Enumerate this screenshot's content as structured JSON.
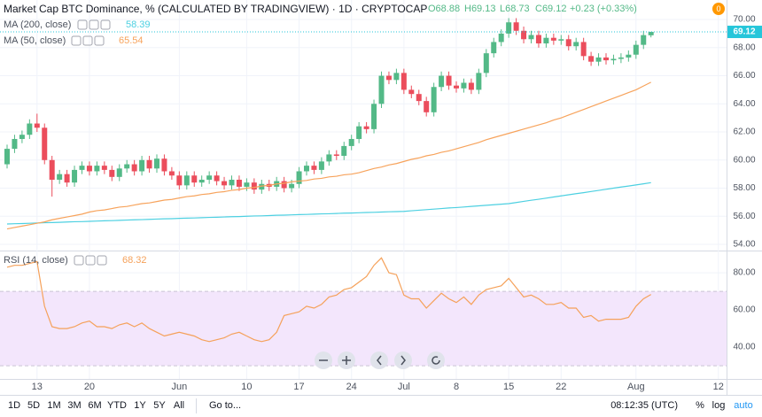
{
  "chart_data": [
    {
      "type": "candlestick",
      "title": "Market Cap BTC Dominance, % (CALCULATED BY TRADINGVIEW) · 1D · CRYPTOCAP",
      "ohlc_legend": [
        "O68.88",
        "H69.13",
        "L68.73",
        "C69.12"
      ],
      "change": "+0.23 (+0.33%)",
      "up_color": "#53b987",
      "down_color": "#eb4d5c",
      "categories": [
        null,
        null,
        null,
        null,
        "13",
        null,
        null,
        null,
        null,
        null,
        null,
        "20",
        null,
        null,
        null,
        null,
        null,
        null,
        null,
        null,
        null,
        null,
        null,
        "Jun",
        null,
        null,
        null,
        null,
        null,
        null,
        null,
        null,
        "10",
        null,
        null,
        null,
        null,
        null,
        null,
        "17",
        null,
        null,
        null,
        null,
        null,
        null,
        "24",
        null,
        null,
        null,
        null,
        null,
        null,
        "Jul",
        null,
        null,
        null,
        null,
        null,
        null,
        "8",
        null,
        null,
        null,
        null,
        null,
        null,
        "15",
        null,
        null,
        null,
        null,
        null,
        null,
        "22",
        null,
        null,
        null,
        null,
        null,
        null,
        null,
        null,
        null,
        "Aug",
        null,
        null,
        null,
        null,
        null,
        null,
        null,
        null,
        null,
        null,
        "12"
      ],
      "ohlc": [
        [
          59.7,
          61.1,
          59.4,
          60.8
        ],
        [
          60.8,
          61.8,
          60.5,
          61.5
        ],
        [
          61.5,
          62.1,
          61.2,
          61.8
        ],
        [
          61.8,
          62.9,
          61.5,
          62.6
        ],
        [
          62.6,
          63.3,
          62.0,
          62.3
        ],
        [
          62.3,
          62.6,
          59.7,
          60.0
        ],
        [
          60.0,
          60.3,
          57.4,
          58.6
        ],
        [
          58.6,
          59.3,
          58.3,
          59.0
        ],
        [
          59.0,
          59.3,
          58.1,
          58.4
        ],
        [
          58.4,
          59.6,
          58.1,
          59.3
        ],
        [
          59.3,
          59.9,
          59.0,
          59.6
        ],
        [
          59.6,
          59.9,
          58.9,
          59.2
        ],
        [
          59.2,
          59.9,
          58.9,
          59.6
        ],
        [
          59.6,
          59.9,
          59.0,
          59.3
        ],
        [
          59.3,
          59.6,
          58.5,
          58.8
        ],
        [
          58.8,
          59.7,
          58.5,
          59.4
        ],
        [
          59.4,
          60.0,
          59.1,
          59.7
        ],
        [
          59.7,
          60.0,
          58.9,
          59.2
        ],
        [
          59.2,
          60.3,
          58.9,
          60.0
        ],
        [
          60.0,
          60.3,
          59.1,
          59.4
        ],
        [
          59.4,
          60.4,
          59.1,
          60.1
        ],
        [
          60.1,
          60.4,
          58.9,
          59.2
        ],
        [
          59.2,
          59.5,
          58.6,
          58.9
        ],
        [
          58.9,
          59.2,
          57.9,
          58.2
        ],
        [
          58.2,
          59.2,
          57.9,
          58.9
        ],
        [
          58.9,
          59.2,
          58.1,
          58.4
        ],
        [
          58.4,
          58.9,
          58.1,
          58.6
        ],
        [
          58.6,
          59.2,
          58.3,
          58.9
        ],
        [
          58.9,
          59.2,
          58.2,
          58.5
        ],
        [
          58.5,
          58.8,
          57.9,
          58.2
        ],
        [
          58.2,
          58.9,
          57.9,
          58.6
        ],
        [
          58.6,
          58.9,
          57.8,
          58.1
        ],
        [
          58.1,
          58.7,
          57.8,
          58.4
        ],
        [
          58.4,
          58.7,
          57.6,
          57.9
        ],
        [
          57.9,
          58.6,
          57.6,
          58.3
        ],
        [
          58.3,
          58.6,
          57.8,
          58.1
        ],
        [
          58.1,
          58.8,
          57.8,
          58.5
        ],
        [
          58.5,
          58.8,
          57.7,
          58.0
        ],
        [
          58.0,
          58.6,
          57.7,
          58.3
        ],
        [
          58.3,
          59.5,
          58.0,
          59.2
        ],
        [
          59.2,
          59.9,
          58.9,
          59.6
        ],
        [
          59.6,
          59.9,
          59.0,
          59.3
        ],
        [
          59.3,
          60.2,
          59.0,
          59.9
        ],
        [
          59.9,
          60.7,
          59.6,
          60.4
        ],
        [
          60.4,
          60.7,
          60.0,
          60.3
        ],
        [
          60.3,
          61.3,
          60.0,
          61.0
        ],
        [
          61.0,
          61.8,
          60.7,
          61.5
        ],
        [
          61.5,
          62.7,
          61.2,
          62.4
        ],
        [
          62.4,
          62.7,
          61.9,
          62.2
        ],
        [
          62.2,
          64.3,
          61.9,
          64.0
        ],
        [
          64.0,
          66.3,
          63.7,
          66.0
        ],
        [
          66.0,
          66.3,
          65.4,
          65.7
        ],
        [
          65.7,
          66.5,
          65.4,
          66.2
        ],
        [
          66.2,
          66.5,
          64.7,
          65.0
        ],
        [
          65.0,
          65.3,
          64.4,
          64.7
        ],
        [
          64.7,
          65.0,
          63.9,
          64.2
        ],
        [
          64.2,
          64.5,
          63.1,
          63.4
        ],
        [
          63.4,
          65.5,
          63.1,
          65.2
        ],
        [
          65.2,
          66.3,
          64.9,
          66.0
        ],
        [
          66.0,
          66.3,
          65.0,
          65.3
        ],
        [
          65.3,
          65.6,
          64.8,
          65.1
        ],
        [
          65.1,
          65.8,
          64.8,
          65.5
        ],
        [
          65.5,
          65.8,
          64.7,
          65.0
        ],
        [
          65.0,
          66.5,
          64.7,
          66.2
        ],
        [
          66.2,
          67.9,
          65.9,
          67.6
        ],
        [
          67.6,
          68.7,
          67.3,
          68.4
        ],
        [
          68.4,
          69.3,
          68.1,
          69.0
        ],
        [
          69.0,
          70.1,
          68.7,
          69.8
        ],
        [
          69.8,
          70.1,
          68.9,
          69.2
        ],
        [
          69.2,
          69.5,
          68.3,
          68.6
        ],
        [
          68.6,
          69.2,
          68.3,
          68.9
        ],
        [
          68.9,
          69.2,
          68.0,
          68.3
        ],
        [
          68.3,
          69.0,
          68.0,
          68.7
        ],
        [
          68.7,
          69.0,
          68.2,
          68.5
        ],
        [
          68.5,
          68.9,
          68.2,
          68.6
        ],
        [
          68.6,
          68.9,
          67.8,
          68.1
        ],
        [
          68.1,
          68.7,
          67.8,
          68.4
        ],
        [
          68.4,
          68.7,
          67.1,
          67.4
        ],
        [
          67.4,
          67.7,
          66.7,
          67.0
        ],
        [
          67.0,
          67.6,
          66.7,
          67.3
        ],
        [
          67.3,
          67.6,
          66.8,
          67.1
        ],
        [
          67.1,
          67.5,
          66.8,
          67.2
        ],
        [
          67.2,
          67.6,
          66.9,
          67.3
        ],
        [
          67.3,
          67.8,
          67.0,
          67.5
        ],
        [
          67.5,
          68.5,
          67.2,
          68.2
        ],
        [
          68.2,
          69.2,
          67.9,
          68.89
        ],
        [
          68.88,
          69.13,
          68.73,
          69.12
        ],
        null,
        null,
        null,
        null,
        null,
        null,
        null,
        null,
        null
      ],
      "series": [
        {
          "name": "MA (200, close)",
          "color": "#4dd0e1",
          "values": [
            55.45,
            55.47,
            55.48,
            55.5,
            55.52,
            55.54,
            55.55,
            55.57,
            55.59,
            55.61,
            55.62,
            55.64,
            55.66,
            55.68,
            55.69,
            55.71,
            55.73,
            55.75,
            55.76,
            55.78,
            55.8,
            55.82,
            55.83,
            55.85,
            55.87,
            55.88,
            55.9,
            55.92,
            55.93,
            55.95,
            55.97,
            55.98,
            56.0,
            56.02,
            56.03,
            56.05,
            56.07,
            56.08,
            56.1,
            56.12,
            56.13,
            56.15,
            56.17,
            56.18,
            56.2,
            56.22,
            56.23,
            56.25,
            56.27,
            56.28,
            56.3,
            56.32,
            56.33,
            56.35,
            56.39,
            56.43,
            56.47,
            56.51,
            56.55,
            56.59,
            56.62,
            56.66,
            56.7,
            56.74,
            56.78,
            56.82,
            56.86,
            56.9,
            56.98,
            57.06,
            57.14,
            57.21,
            57.29,
            57.37,
            57.45,
            57.53,
            57.61,
            57.68,
            57.76,
            57.84,
            57.92,
            58.0,
            58.08,
            58.15,
            58.23,
            58.31,
            58.39,
            null,
            null,
            null,
            null,
            null,
            null,
            null,
            null,
            null
          ]
        },
        {
          "name": "MA (50, close)",
          "color": "#f7a35c",
          "values": [
            55.1,
            55.2,
            55.3,
            55.4,
            55.5,
            55.6,
            55.75,
            55.85,
            55.95,
            56.05,
            56.15,
            56.3,
            56.4,
            56.45,
            56.55,
            56.65,
            56.7,
            56.8,
            56.9,
            56.95,
            57.05,
            57.15,
            57.2,
            57.3,
            57.4,
            57.45,
            57.55,
            57.6,
            57.7,
            57.75,
            57.85,
            57.9,
            58.0,
            58.05,
            58.15,
            58.2,
            58.3,
            58.35,
            58.45,
            58.5,
            58.55,
            58.65,
            58.7,
            58.8,
            58.85,
            58.95,
            59.0,
            59.1,
            59.25,
            59.4,
            59.5,
            59.65,
            59.75,
            59.9,
            60.05,
            60.15,
            60.3,
            60.4,
            60.55,
            60.65,
            60.8,
            60.95,
            61.1,
            61.25,
            61.45,
            61.6,
            61.75,
            61.9,
            62.05,
            62.2,
            62.35,
            62.5,
            62.65,
            62.85,
            63.0,
            63.2,
            63.4,
            63.6,
            63.8,
            64.0,
            64.2,
            64.4,
            64.6,
            64.8,
            65.0,
            65.27,
            65.54,
            null,
            null,
            null,
            null,
            null,
            null,
            null,
            null,
            null
          ]
        }
      ],
      "ylim": [
        53.56,
        71.39
      ],
      "yticks": [
        {
          "value": 54,
          "label": "54.00"
        },
        {
          "value": 56,
          "label": "56.00"
        },
        {
          "value": 58,
          "label": "58.00"
        },
        {
          "value": 60,
          "label": "60.00"
        },
        {
          "value": 62,
          "label": "62.00"
        },
        {
          "value": 64,
          "label": "64.00"
        },
        {
          "value": 66,
          "label": "66.00"
        },
        {
          "value": 68,
          "label": "68.00"
        },
        {
          "value": 70,
          "label": "70.00"
        }
      ],
      "grid": true,
      "price_line_color": "#26c6da"
    },
    {
      "type": "line",
      "series": [
        {
          "name": "RSI (14, close)",
          "color": "#f5a15a",
          "values": [
            83,
            84,
            84,
            85,
            86,
            62,
            51,
            50,
            50,
            51,
            53,
            54,
            51,
            51,
            50,
            52,
            53,
            51,
            53,
            50,
            48,
            46,
            47,
            48,
            47,
            46,
            44,
            43,
            44,
            45,
            47,
            48,
            46,
            44,
            43,
            44,
            48,
            57,
            58,
            59,
            62,
            61,
            63,
            67,
            68,
            71,
            72,
            75,
            78,
            84,
            88,
            80,
            79,
            68,
            66,
            66,
            61,
            65,
            69,
            66,
            64,
            67,
            63,
            68,
            71,
            72,
            73,
            77,
            72,
            67,
            68,
            66,
            63,
            63,
            64,
            61,
            61,
            56,
            57,
            54,
            55,
            55,
            55,
            56,
            62,
            66,
            68.32,
            null,
            null,
            null,
            null,
            null,
            null,
            null,
            null,
            null
          ]
        }
      ],
      "ylim": [
        22.9,
        91
      ],
      "yticks": [
        {
          "value": 40,
          "label": "40.00"
        },
        {
          "value": 60,
          "label": "60.00"
        },
        {
          "value": 80,
          "label": "80.00"
        }
      ],
      "band": [
        30,
        70
      ],
      "band_color": "#f3e6fc",
      "grid": true
    }
  ],
  "toolbar": {
    "ranges": [
      "1D",
      "5D",
      "1M",
      "3M",
      "6M",
      "YTD",
      "1Y",
      "5Y",
      "All"
    ],
    "goto": "Go to...",
    "clock": "08:12:35 (UTC)",
    "percent": "%",
    "log": "log",
    "auto": "auto"
  },
  "alerts": "0"
}
